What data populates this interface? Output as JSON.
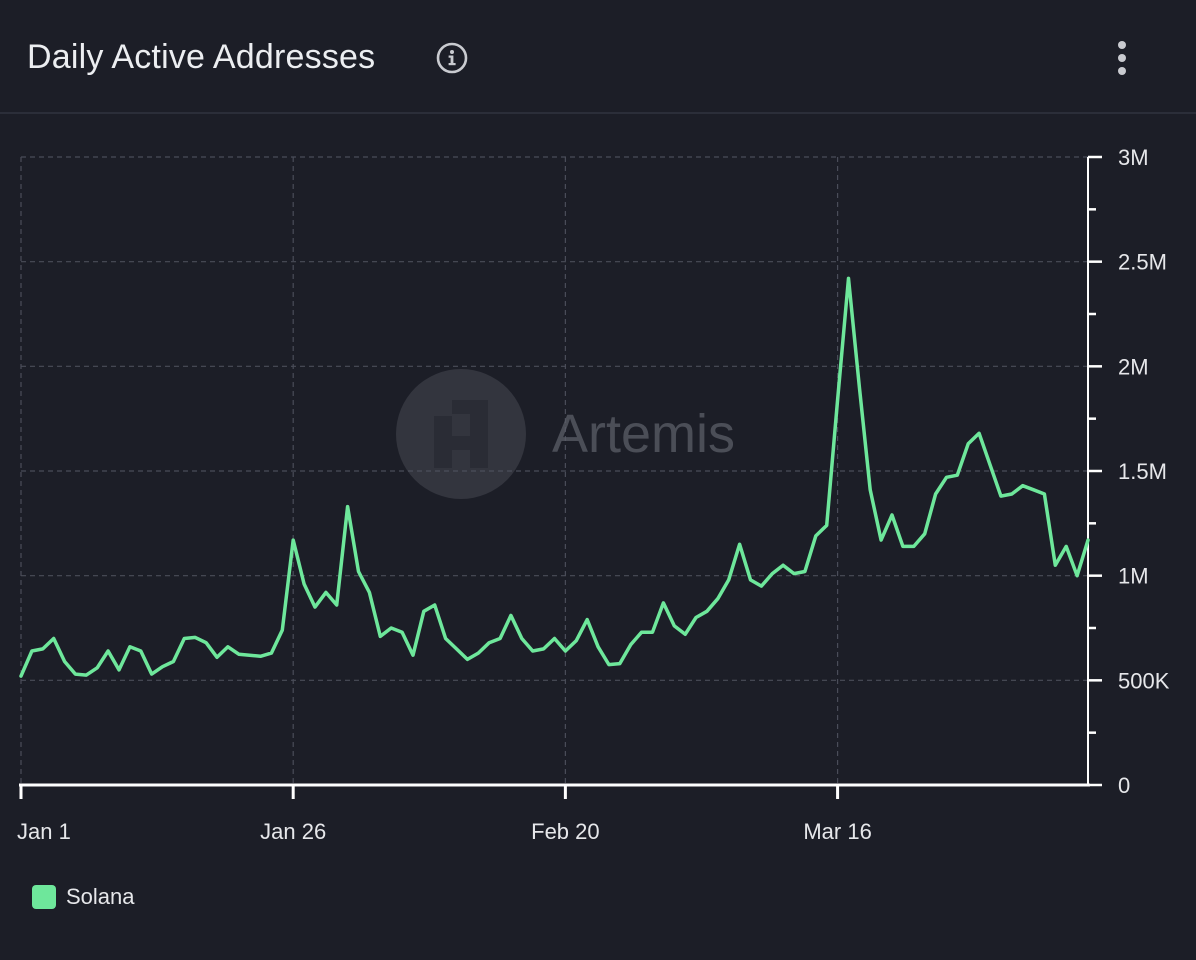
{
  "header": {
    "title": "Daily Active Addresses",
    "info_icon": "info-icon",
    "menu_icon": "kebab-menu-icon"
  },
  "watermark": {
    "text": "Artemis",
    "logo_icon": "artemis-logo-icon"
  },
  "colors": {
    "background": "#1c1e27",
    "series": "#6ee79b",
    "grid": "#4a4d59",
    "axis": "#ffffff",
    "text": "#e6e7ea"
  },
  "chart_data": {
    "type": "line",
    "title": "Daily Active Addresses",
    "xlabel": "",
    "ylabel": "",
    "x_ticks": [
      "Jan 1",
      "Jan 26",
      "Feb 20",
      "Mar 16"
    ],
    "y_ticks": [
      "0",
      "500K",
      "1M",
      "1.5M",
      "2M",
      "2.5M",
      "3M"
    ],
    "ylim": [
      0,
      3000000
    ],
    "y_axis_side": "right",
    "grid": true,
    "legend_position": "bottom-left",
    "x_start": "Jan 1",
    "series": [
      {
        "name": "Solana",
        "color": "#6ee79b",
        "values": [
          520000,
          640000,
          650000,
          700000,
          590000,
          530000,
          525000,
          560000,
          640000,
          550000,
          660000,
          640000,
          530000,
          565000,
          590000,
          700000,
          705000,
          680000,
          610000,
          660000,
          625000,
          620000,
          615000,
          630000,
          740000,
          1170000,
          960000,
          850000,
          920000,
          860000,
          1330000,
          1020000,
          920000,
          710000,
          750000,
          730000,
          620000,
          830000,
          860000,
          700000,
          650000,
          600000,
          630000,
          680000,
          700000,
          810000,
          700000,
          640000,
          650000,
          700000,
          640000,
          690000,
          790000,
          660000,
          575000,
          580000,
          670000,
          730000,
          730000,
          870000,
          760000,
          720000,
          800000,
          830000,
          890000,
          980000,
          1150000,
          980000,
          950000,
          1010000,
          1050000,
          1010000,
          1020000,
          1190000,
          1240000,
          1840000,
          2420000,
          1900000,
          1410000,
          1170000,
          1290000,
          1140000,
          1140000,
          1200000,
          1390000,
          1470000,
          1480000,
          1630000,
          1680000,
          1530000,
          1380000,
          1390000,
          1430000,
          1410000,
          1390000,
          1050000,
          1140000,
          1000000,
          1170000
        ]
      }
    ]
  }
}
